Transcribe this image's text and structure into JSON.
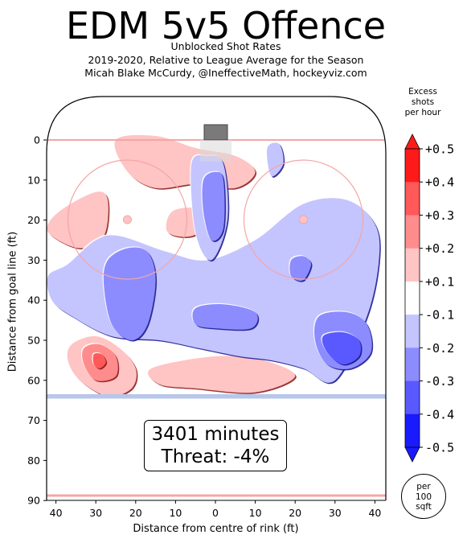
{
  "title": "EDM 5v5 Offence",
  "subtitle_lines": [
    "Unblocked Shot Rates",
    "2019-2020, Relative to League Average for the Season",
    "Micah Blake McCurdy, @IneffectiveMath, hockeyviz.com"
  ],
  "info": {
    "minutes": "3401 minutes",
    "threat": "Threat: -4%"
  },
  "per_note": [
    "per",
    "100",
    "sqft"
  ],
  "colorbar": {
    "label_lines": [
      "Excess",
      "shots",
      "per hour"
    ],
    "ticks": [
      "+0.5",
      "+0.4",
      "+0.3",
      "+0.2",
      "+0.1",
      "-0.1",
      "-0.2",
      "-0.3",
      "-0.4",
      "-0.5"
    ],
    "colors_top_to_bottom": [
      "#ff1a1a",
      "#ff5959",
      "#ff8c8c",
      "#ffc4c4",
      "#ffffff",
      "#c4c4ff",
      "#8c8cff",
      "#5959ff",
      "#1a1aff"
    ]
  },
  "chart_data": {
    "type": "heatmap",
    "xlabel": "Distance from centre of rink (ft)",
    "ylabel": "Distance from goal line (ft)",
    "x_ticks": [
      "40",
      "30",
      "20",
      "10",
      "0",
      "10",
      "20",
      "30",
      "40"
    ],
    "y_ticks": [
      "0",
      "10",
      "20",
      "30",
      "40",
      "50",
      "60",
      "70",
      "80",
      "90"
    ],
    "xlim": [
      -42.5,
      42.5
    ],
    "ylim": [
      -11,
      90
    ],
    "color_scale_range": [
      -0.5,
      0.5
    ],
    "regions": [
      {
        "sign": "positive",
        "level": 0.2,
        "x": [
          -25,
          -15,
          -5,
          5,
          10,
          5,
          -5,
          -15,
          -22
        ],
        "y": [
          0,
          -1,
          2,
          4,
          8,
          12,
          11,
          12,
          8
        ]
      },
      {
        "sign": "positive",
        "level": 0.2,
        "x": [
          -42,
          -38,
          -30,
          -27,
          -28,
          -34,
          -41
        ],
        "y": [
          21,
          17,
          13,
          15,
          24,
          27,
          24
        ]
      },
      {
        "sign": "positive",
        "level": 0.2,
        "x": [
          -11,
          -5,
          0,
          -6,
          -12
        ],
        "y": [
          18,
          17,
          20,
          24,
          23
        ]
      },
      {
        "sign": "positive",
        "level": 0.2,
        "x": [
          -36,
          -30,
          -24,
          -20,
          -21,
          -27,
          -34,
          -37
        ],
        "y": [
          51,
          49,
          52,
          57,
          62,
          64,
          60,
          55
        ]
      },
      {
        "sign": "positive",
        "level": 0.3,
        "x": [
          -33,
          -29,
          -25,
          -25,
          -30,
          -33
        ],
        "y": [
          52,
          51,
          54,
          59,
          60,
          56
        ]
      },
      {
        "sign": "positive",
        "level": 0.4,
        "x": [
          -30.5,
          -28.5,
          -27.5,
          -29,
          -30.5
        ],
        "y": [
          53.5,
          53.5,
          55.5,
          57,
          56
        ]
      },
      {
        "sign": "positive",
        "level": 0.2,
        "x": [
          -16,
          0,
          12,
          20,
          10,
          -5,
          -14
        ],
        "y": [
          57,
          54,
          55,
          59,
          63,
          62,
          61
        ]
      },
      {
        "sign": "negative",
        "level": -0.1,
        "x": [
          -42,
          -37,
          -30,
          -24,
          -12,
          -2,
          10,
          22,
          33,
          40,
          41,
          38,
          30,
          22,
          14,
          6,
          -4,
          -14,
          -26,
          -36,
          -41
        ],
        "y": [
          34,
          31,
          25,
          24,
          28,
          30,
          25,
          16,
          15,
          21,
          30,
          44,
          60,
          57,
          55,
          54,
          52,
          50,
          49,
          44,
          40
        ]
      },
      {
        "sign": "negative",
        "level": -0.1,
        "x": [
          -6,
          -2,
          2,
          3,
          -1,
          -5
        ],
        "y": [
          6,
          4,
          6,
          20,
          30,
          23
        ]
      },
      {
        "sign": "negative",
        "level": -0.1,
        "x": [
          13,
          16,
          17,
          14
        ],
        "y": [
          2,
          1,
          6,
          9
        ]
      },
      {
        "sign": "negative",
        "level": -0.2,
        "x": [
          -27,
          -22,
          -17,
          -15,
          -17,
          -21,
          -26,
          -28
        ],
        "y": [
          30,
          27,
          28,
          35,
          46,
          50,
          46,
          36
        ]
      },
      {
        "sign": "negative",
        "level": -0.2,
        "x": [
          -3,
          0,
          2,
          2,
          -1,
          -3
        ],
        "y": [
          10,
          8,
          10,
          22,
          25,
          18
        ]
      },
      {
        "sign": "negative",
        "level": -0.2,
        "x": [
          -5,
          2,
          10,
          9,
          0,
          -5
        ],
        "y": [
          42,
          41,
          43,
          47,
          47,
          46
        ]
      },
      {
        "sign": "negative",
        "level": -0.2,
        "x": [
          19,
          22,
          24,
          22,
          19
        ],
        "y": [
          30,
          29,
          31,
          35,
          34
        ]
      },
      {
        "sign": "negative",
        "level": -0.2,
        "x": [
          26,
          33,
          38,
          39,
          34,
          28,
          25
        ],
        "y": [
          44,
          43,
          46,
          53,
          57,
          56,
          50
        ]
      },
      {
        "sign": "negative",
        "level": -0.3,
        "x": [
          27,
          32,
          36,
          36,
          32,
          28
        ],
        "y": [
          49,
          48,
          50,
          54,
          56,
          53
        ]
      }
    ],
    "grid": false
  }
}
